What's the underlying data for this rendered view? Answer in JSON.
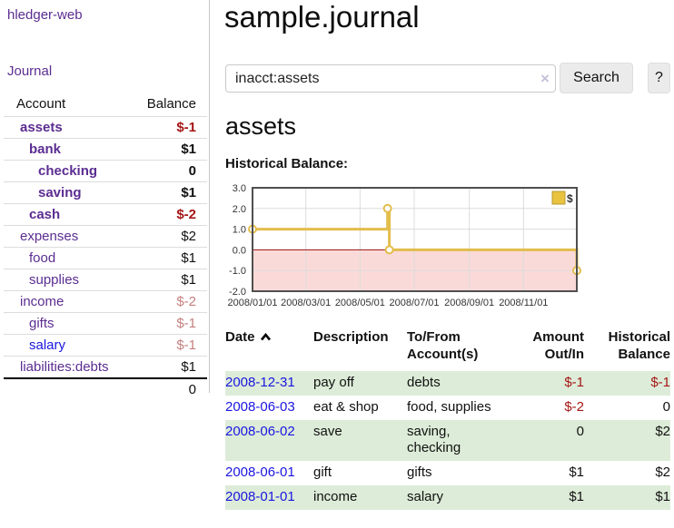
{
  "colors": {
    "link_purple": "#5b2d91",
    "link_blue": "#1b16e0",
    "negative_strong": "#a51616",
    "negative_soft": "#c47f7f",
    "row_stripe_green": "#ddecd8"
  },
  "sidebar": {
    "app_title": "hledger-web",
    "journal_label": "Journal",
    "accounts": {
      "col_account": "Account",
      "col_balance": "Balance",
      "rows": [
        {
          "name": "assets",
          "depth": 0,
          "matched": true,
          "balance": "$-1",
          "tone": "neg-strong"
        },
        {
          "name": "bank",
          "depth": 1,
          "matched": true,
          "balance": "$1",
          "tone": "pos"
        },
        {
          "name": "checking",
          "depth": 2,
          "matched": true,
          "balance": "0",
          "tone": "pos"
        },
        {
          "name": "saving",
          "depth": 2,
          "matched": true,
          "balance": "$1",
          "tone": "pos"
        },
        {
          "name": "cash",
          "depth": 1,
          "matched": true,
          "balance": "$-2",
          "tone": "neg-strong"
        },
        {
          "name": "expenses",
          "depth": 0,
          "matched": false,
          "balance": "$2",
          "tone": "pos"
        },
        {
          "name": "food",
          "depth": 1,
          "matched": false,
          "balance": "$1",
          "tone": "pos"
        },
        {
          "name": "supplies",
          "depth": 1,
          "matched": false,
          "balance": "$1",
          "tone": "pos"
        },
        {
          "name": "income",
          "depth": 0,
          "matched": false,
          "balance": "$-2",
          "tone": "neg-soft"
        },
        {
          "name": "gifts",
          "depth": 1,
          "matched": false,
          "balance": "$-1",
          "tone": "neg-soft"
        },
        {
          "name": "salary",
          "depth": 1,
          "matched": false,
          "balance": "$-1",
          "tone": "neg-soft",
          "link_tone": "blue"
        },
        {
          "name": "liabilities:debts",
          "depth": 0,
          "matched": false,
          "balance": "$1",
          "tone": "pos"
        }
      ],
      "total": "0"
    }
  },
  "header": {
    "title": "sample.journal"
  },
  "search": {
    "query": "inacct:assets",
    "clear_label": "×",
    "button_label": "Search",
    "help_label": "?"
  },
  "account_page": {
    "heading": "assets",
    "section_label": "Historical Balance:"
  },
  "chart_data": {
    "type": "line",
    "step": true,
    "title": "Historical Balance",
    "series": [
      {
        "name": "$",
        "points": [
          {
            "x": "2008-01-01",
            "y": 1.0
          },
          {
            "x": "2008-06-01",
            "y": 2.0
          },
          {
            "x": "2008-06-03",
            "y": 0.0
          },
          {
            "x": "2008-12-31",
            "y": -1.0
          }
        ]
      }
    ],
    "ylim": [
      -2.0,
      3.0
    ],
    "xlim": [
      "2008-01-01",
      "2008-12-31"
    ],
    "yticks": [
      3.0,
      2.0,
      1.0,
      0.0,
      -1.0,
      -2.0
    ],
    "xticks": [
      "2008/01/01",
      "2008/03/01",
      "2008/05/01",
      "2008/07/01",
      "2008/09/01",
      "2008/11/01"
    ],
    "grid": true,
    "legend_position": "top-right",
    "colors": {
      "line": "#e3bd4c",
      "point_fill": "#ffffff",
      "negative_fill": "#fadad8",
      "zero_line": "#981212",
      "grid": "#dcdcdc",
      "frame": "#4f4f4f",
      "legend_fill": "#e9c23f",
      "legend_border": "#b89a30",
      "tick_text": "#333333"
    }
  },
  "register_table": {
    "columns": [
      {
        "label": "Date",
        "sorted": "ascending"
      },
      {
        "label": "Description"
      },
      {
        "label": "To/From Account(s)"
      },
      {
        "label": "Amount Out/In"
      },
      {
        "label": "Historical Balance"
      }
    ],
    "rows": [
      {
        "date": "2008-12-31",
        "description": "pay off",
        "accounts": "debts",
        "amount": "$-1",
        "amount_tone": "neg",
        "balance": "$-1",
        "balance_tone": "pos-neg"
      },
      {
        "date": "2008-06-03",
        "description": "eat & shop",
        "accounts": "food, supplies",
        "amount": "$-2",
        "amount_tone": "neg",
        "balance": "0",
        "balance_tone": "pos"
      },
      {
        "date": "2008-06-02",
        "description": "save",
        "accounts": "saving, checking",
        "amount": "0",
        "amount_tone": "pos",
        "balance": "$2",
        "balance_tone": "pos"
      },
      {
        "date": "2008-06-01",
        "description": "gift",
        "accounts": "gifts",
        "amount": "$1",
        "amount_tone": "pos",
        "balance": "$2",
        "balance_tone": "pos"
      },
      {
        "date": "2008-01-01",
        "description": "income",
        "accounts": "salary",
        "amount": "$1",
        "amount_tone": "pos",
        "balance": "$1",
        "balance_tone": "pos"
      }
    ]
  }
}
